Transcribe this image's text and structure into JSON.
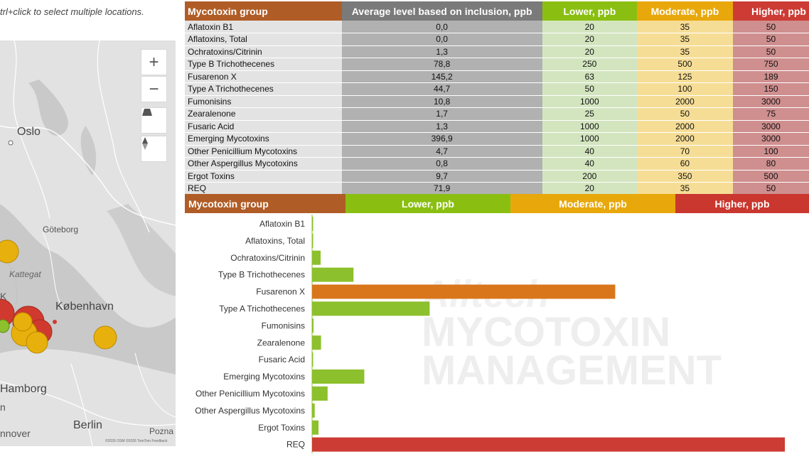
{
  "map": {
    "hint": "trl+click to select multiple locations.",
    "zoom_in": "+",
    "zoom_out": "−",
    "labels": {
      "oslo": "Oslo",
      "goteborg": "Göteborg",
      "kattegat": "Kattegat",
      "kobenhavn": "København",
      "hamborg": "Hamborg",
      "berlin": "Berlin",
      "hannover": "nnover",
      "poznan": "Pozna",
      "frag": "n",
      "frag2": "K"
    },
    "attribution": "©2026 OSM ©2026 TomTom Feedback",
    "marker_colors": {
      "high": "#d03a2e",
      "moderate": "#e8b00c",
      "low": "#8cc02c"
    }
  },
  "table": {
    "headers": [
      "Mycotoxin group",
      "Average level based on inclusion, ppb",
      "Lower, ppb",
      "Moderate, ppb",
      "Higher, ppb"
    ],
    "header_colors": [
      "#b05c26",
      "#7a7a7a",
      "#8abf12",
      "#e8a80c",
      "#cc3b34"
    ],
    "rows": [
      [
        "Aflatoxin B1",
        "0,0",
        "20",
        "35",
        "50"
      ],
      [
        "Aflatoxins, Total",
        "0,0",
        "20",
        "35",
        "50"
      ],
      [
        "Ochratoxins/Citrinin",
        "1,3",
        "20",
        "35",
        "50"
      ],
      [
        "Type B Trichothecenes",
        "78,8",
        "250",
        "500",
        "750"
      ],
      [
        "Fusarenon X",
        "145,2",
        "63",
        "125",
        "189"
      ],
      [
        "Type A Trichothecenes",
        "44,7",
        "50",
        "100",
        "150"
      ],
      [
        "Fumonisins",
        "10,8",
        "1000",
        "2000",
        "3000"
      ],
      [
        "Zearalenone",
        "1,7",
        "25",
        "50",
        "75"
      ],
      [
        "Fusaric Acid",
        "1,3",
        "1000",
        "2000",
        "3000"
      ],
      [
        "Emerging Mycotoxins",
        "396,9",
        "1000",
        "2000",
        "3000"
      ],
      [
        "Other Penicillium Mycotoxins",
        "4,7",
        "40",
        "70",
        "100"
      ],
      [
        "Other Aspergillus Mycotoxins",
        "0,8",
        "40",
        "60",
        "80"
      ],
      [
        "Ergot Toxins",
        "9,7",
        "200",
        "350",
        "500"
      ],
      [
        "REQ",
        "71,9",
        "20",
        "35",
        "50"
      ]
    ]
  },
  "legend": {
    "title": "Mycotoxin group",
    "low": "Lower, ppb",
    "moderate": "Moderate, ppb",
    "high": "Higher, ppb",
    "colors": {
      "title": "#b05c26",
      "low": "#8abf12",
      "moderate": "#e8a80c",
      "high": "#c9372f"
    }
  },
  "watermark": {
    "logo": "Alltech",
    "line1": "MYCOTOXIN",
    "line2": "MANAGEMENT"
  },
  "chart_data": {
    "type": "bar",
    "orientation": "horizontal",
    "categories": [
      "Aflatoxin B1",
      "Aflatoxins, Total",
      "Ochratoxins/Citrinin",
      "Type B Trichothecenes",
      "Fusarenon X",
      "Type A Trichothecenes",
      "Fumonisins",
      "Zearalenone",
      "Fusaric Acid",
      "Emerging Mycotoxins",
      "Other Penicillium Mycotoxins",
      "Other Aspergillus Mycotoxins",
      "Ergot Toxins",
      "REQ"
    ],
    "values_pct_of_low_limit": [
      0,
      0,
      6.5,
      31.5,
      230.5,
      89.4,
      1.1,
      6.8,
      0.1,
      39.7,
      11.8,
      2,
      4.9,
      359.5
    ],
    "levels": [
      "low",
      "low",
      "low",
      "low",
      "high",
      "low",
      "low",
      "low",
      "low",
      "low",
      "low",
      "low",
      "low",
      "high"
    ],
    "level_colors": {
      "low": "#8cc02c",
      "moderate": "#e8a80c",
      "high": "#cc3b34",
      "orange": "#d9761c"
    },
    "bar_colors": [
      "#8cc02c",
      "#8cc02c",
      "#8cc02c",
      "#8cc02c",
      "#d9761c",
      "#8cc02c",
      "#8cc02c",
      "#8cc02c",
      "#8cc02c",
      "#8cc02c",
      "#8cc02c",
      "#8cc02c",
      "#8cc02c",
      "#cc3b34"
    ],
    "xlim": [
      0,
      360
    ],
    "title": "",
    "xlabel": "",
    "ylabel": "",
    "grid": false
  }
}
